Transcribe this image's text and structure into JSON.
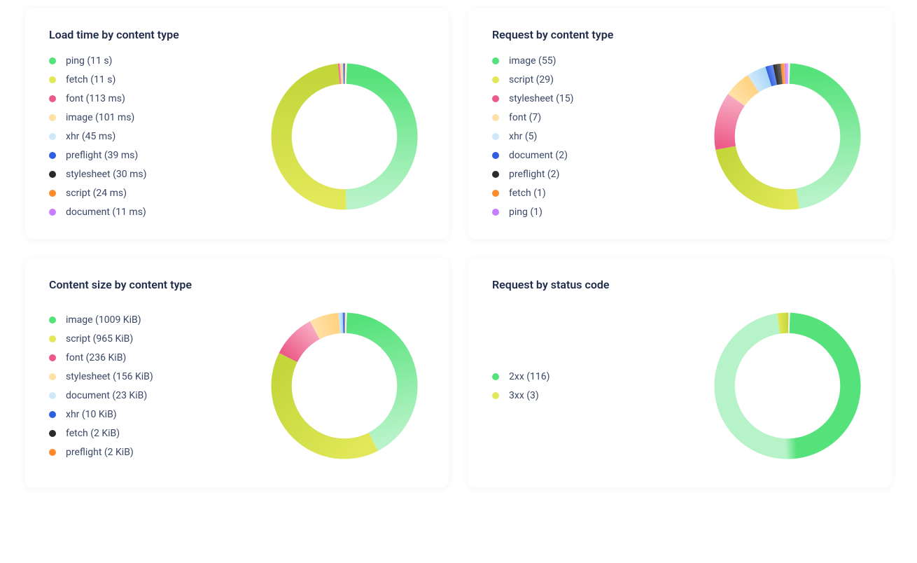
{
  "layout": {
    "background": "#ffffff",
    "card_shadow": "rgba(30,43,74,0.05)",
    "title_color": "#1e2b4a",
    "text_color": "#3a4766",
    "title_fontsize": 16,
    "legend_fontsize": 14
  },
  "donut": {
    "outer_radius": 100,
    "inner_radius": 72,
    "start_angle_deg": 2,
    "gap_deg": 1.2
  },
  "panels": [
    {
      "id": "load-time",
      "title": "Load time by content type",
      "type": "donut",
      "items": [
        {
          "label": "ping (11 s)",
          "value": 11000,
          "colorA": "#55e27a",
          "colorB": "#b7f3c8"
        },
        {
          "label": "fetch (11 s)",
          "value": 11000,
          "colorA": "#e2e85a",
          "colorB": "#c3d63a"
        },
        {
          "label": "font (113 ms)",
          "value": 113,
          "colorA": "#ec5a89",
          "colorB": "#f7a9c2"
        },
        {
          "label": "image (101 ms)",
          "value": 101,
          "colorA": "#ffe1a8",
          "colorB": "#ffd280"
        },
        {
          "label": "xhr (45 ms)",
          "value": 45,
          "colorA": "#cfe9fb",
          "colorB": "#a9d7f5"
        },
        {
          "label": "preflight (39 ms)",
          "value": 39,
          "colorA": "#2f5fe0",
          "colorB": "#6a8ef0"
        },
        {
          "label": "stylesheet (30 ms)",
          "value": 30,
          "colorA": "#2b2b2b",
          "colorB": "#666666"
        },
        {
          "label": "script (24 ms)",
          "value": 24,
          "colorA": "#ff8a2a",
          "colorB": "#ffb06a"
        },
        {
          "label": "document (11 ms)",
          "value": 11,
          "colorA": "#c77dff",
          "colorB": "#e0b3ff"
        }
      ]
    },
    {
      "id": "request-type",
      "title": "Request by content type",
      "type": "donut",
      "items": [
        {
          "label": "image (55)",
          "value": 55,
          "colorA": "#55e27a",
          "colorB": "#b7f3c8"
        },
        {
          "label": "script (29)",
          "value": 29,
          "colorA": "#e2e85a",
          "colorB": "#c3d63a"
        },
        {
          "label": "stylesheet (15)",
          "value": 15,
          "colorA": "#ec5a89",
          "colorB": "#f7a9c2"
        },
        {
          "label": "font (7)",
          "value": 7,
          "colorA": "#ffe1a8",
          "colorB": "#ffd280"
        },
        {
          "label": "xhr (5)",
          "value": 5,
          "colorA": "#cfe9fb",
          "colorB": "#a9d7f5"
        },
        {
          "label": "document (2)",
          "value": 2,
          "colorA": "#2f5fe0",
          "colorB": "#6a8ef0"
        },
        {
          "label": "preflight (2)",
          "value": 2,
          "colorA": "#2b2b2b",
          "colorB": "#666666"
        },
        {
          "label": "fetch (1)",
          "value": 1,
          "colorA": "#ff8a2a",
          "colorB": "#ffb06a"
        },
        {
          "label": "ping (1)",
          "value": 1,
          "colorA": "#c77dff",
          "colorB": "#e0b3ff"
        }
      ]
    },
    {
      "id": "content-size",
      "title": "Content size by content type",
      "type": "donut",
      "items": [
        {
          "label": "image (1009 KiB)",
          "value": 1009,
          "colorA": "#55e27a",
          "colorB": "#b7f3c8"
        },
        {
          "label": "script (965 KiB)",
          "value": 965,
          "colorA": "#e2e85a",
          "colorB": "#c3d63a"
        },
        {
          "label": "font (236 KiB)",
          "value": 236,
          "colorA": "#ec5a89",
          "colorB": "#f7a9c2"
        },
        {
          "label": "stylesheet (156 KiB)",
          "value": 156,
          "colorA": "#ffe1a8",
          "colorB": "#ffd280"
        },
        {
          "label": "document (23 KiB)",
          "value": 23,
          "colorA": "#cfe9fb",
          "colorB": "#a9d7f5"
        },
        {
          "label": "xhr (10 KiB)",
          "value": 10,
          "colorA": "#2f5fe0",
          "colorB": "#6a8ef0"
        },
        {
          "label": "fetch (2 KiB)",
          "value": 2,
          "colorA": "#2b2b2b",
          "colorB": "#666666"
        },
        {
          "label": "preflight (2 KiB)",
          "value": 2,
          "colorA": "#ff8a2a",
          "colorB": "#ffb06a"
        }
      ]
    },
    {
      "id": "status-code",
      "title": "Request by status code",
      "type": "donut",
      "items": [
        {
          "label": "2xx (116)",
          "value": 116,
          "colorA": "#55e27a",
          "colorB": "#b7f3c8"
        },
        {
          "label": "3xx (3)",
          "value": 3,
          "colorA": "#e2e85a",
          "colorB": "#c3d63a"
        }
      ]
    }
  ]
}
